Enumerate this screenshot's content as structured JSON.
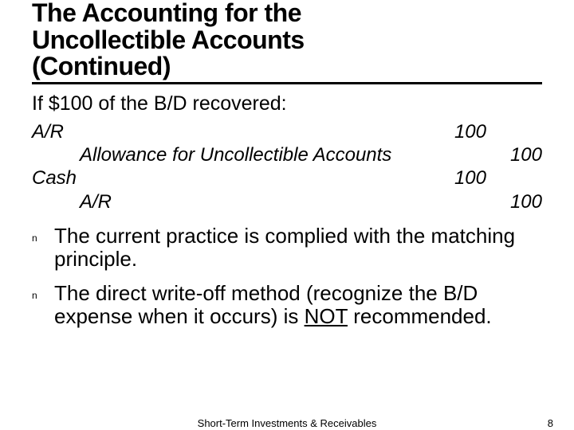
{
  "title_line1": "The Accounting for the",
  "title_line2": "Uncollectible Accounts",
  "title_line3": "(Continued)",
  "intro": "If $100 of the B/D recovered:",
  "journal": {
    "r1_label": "A/R",
    "r1_debit": "100",
    "r2_label": "Allowance for Uncollectible Accounts",
    "r2_credit": "100",
    "r3_label": "Cash",
    "r3_debit": "100",
    "r4_label": "A/R",
    "r4_credit": "100"
  },
  "bullet1": "The current practice is complied with the matching principle.",
  "bullet2_a": "The direct write-off method (recognize the B/D expense when it occurs) is ",
  "bullet2_not": "NOT",
  "bullet2_b": " recommended.",
  "footer_center": "Short-Term Investments & Receivables",
  "footer_page": "8"
}
